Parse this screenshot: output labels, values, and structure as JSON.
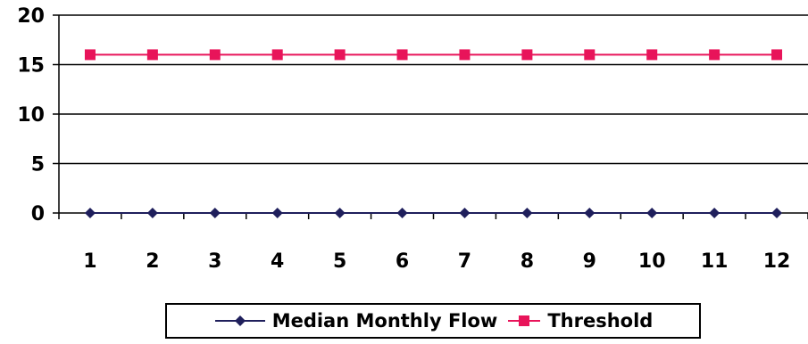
{
  "chart_data": {
    "type": "line",
    "x": [
      1,
      2,
      3,
      4,
      5,
      6,
      7,
      8,
      9,
      10,
      11,
      12
    ],
    "categories": [
      "1",
      "2",
      "3",
      "4",
      "5",
      "6",
      "7",
      "8",
      "9",
      "10",
      "11",
      "12"
    ],
    "series": [
      {
        "name": "Median Monthly Flow",
        "values": [
          0,
          0,
          0,
          0,
          0,
          0,
          0,
          0,
          0,
          0,
          0,
          0
        ],
        "color": "#1f1f5c",
        "marker": "diamond"
      },
      {
        "name": "Threshold",
        "values": [
          16,
          16,
          16,
          16,
          16,
          16,
          16,
          16,
          16,
          16,
          16,
          16
        ],
        "color": "#e8145a",
        "marker": "square"
      }
    ],
    "yticks": [
      "0",
      "5",
      "10",
      "15",
      "20"
    ],
    "ylim": [
      0,
      20
    ],
    "grid": true,
    "legend_position": "bottom"
  }
}
